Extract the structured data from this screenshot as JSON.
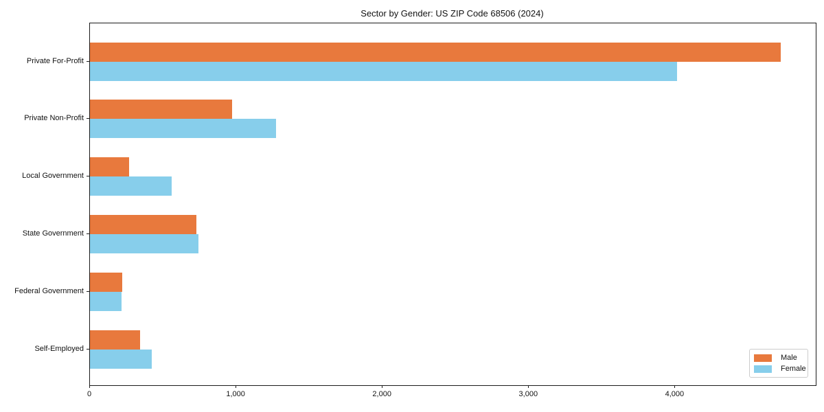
{
  "chart_data": {
    "type": "bar",
    "orientation": "horizontal",
    "title": "Sector by Gender: US ZIP Code 68506 (2024)",
    "categories": [
      "Private For-Profit",
      "Private Non-Profit",
      "Local Government",
      "State Government",
      "Federal Government",
      "Self-Employed"
    ],
    "series": [
      {
        "name": "Male",
        "color": "#E8793D",
        "values": [
          4720,
          970,
          265,
          725,
          220,
          340
        ]
      },
      {
        "name": "Female",
        "color": "#87CEEB",
        "values": [
          4010,
          1270,
          560,
          740,
          215,
          420
        ]
      }
    ],
    "xlabel": "",
    "ylabel": "",
    "xlim": [
      0,
      4960
    ],
    "xticks": [
      {
        "value": 0,
        "label": "0"
      },
      {
        "value": 1000,
        "label": "1,000"
      },
      {
        "value": 2000,
        "label": "2,000"
      },
      {
        "value": 3000,
        "label": "3,000"
      },
      {
        "value": 4000,
        "label": "4,000"
      }
    ],
    "grid": false,
    "legend": {
      "position": "lower-right",
      "entries": [
        "Male",
        "Female"
      ]
    }
  }
}
